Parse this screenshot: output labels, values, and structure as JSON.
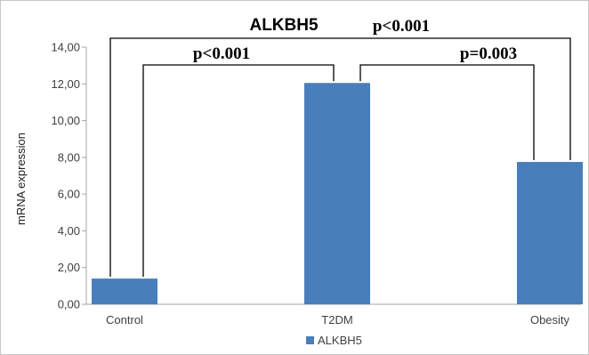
{
  "chart_data": {
    "type": "bar",
    "title": "ALKBH5",
    "ylabel": "mRNA expression",
    "xlabel": "",
    "categories": [
      "Control",
      "T2DM",
      "Obesity"
    ],
    "series": [
      {
        "name": "ALKBH5",
        "values": [
          1.4,
          12.05,
          7.75
        ],
        "color": "#4a7ebb"
      }
    ],
    "ylim": [
      0,
      14
    ],
    "yticks": [
      "0,00",
      "2,00",
      "4,00",
      "6,00",
      "8,00",
      "10,00",
      "12,00",
      "14,00"
    ],
    "grid": false,
    "legend": "bottom",
    "annotations": [
      {
        "from": "Control",
        "to": "Obesity",
        "label": "p<0.001"
      },
      {
        "from": "Control",
        "to": "T2DM",
        "label": "p<0.001"
      },
      {
        "from": "T2DM",
        "to": "Obesity",
        "label": "p=0.003"
      }
    ]
  }
}
